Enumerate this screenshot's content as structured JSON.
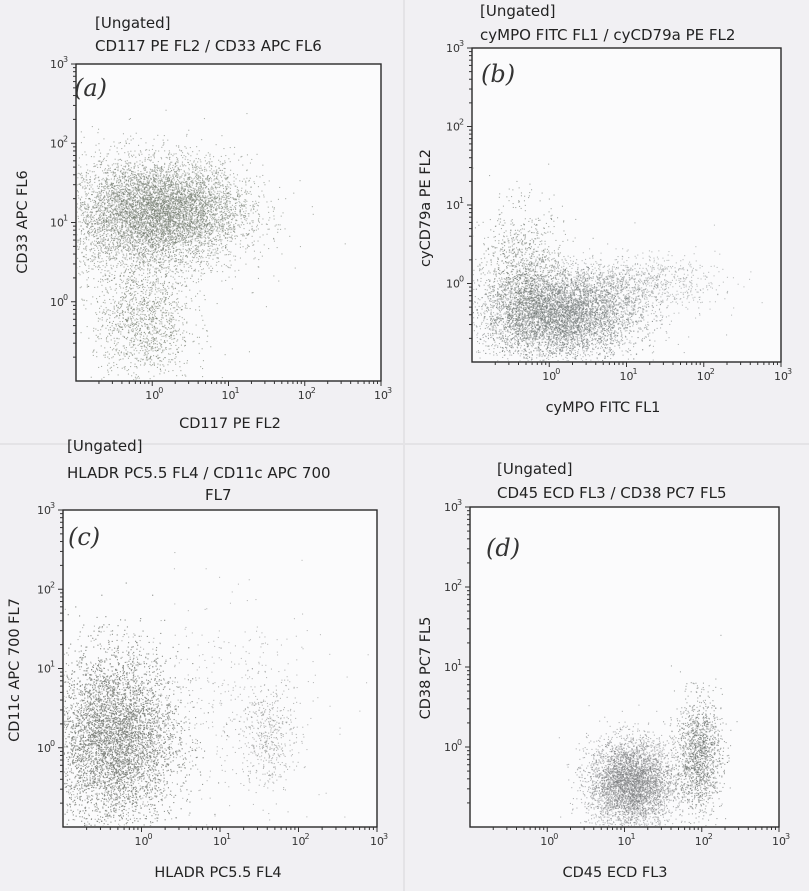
{
  "chart_data": [
    {
      "type": "scatter",
      "panel_label": "(a)",
      "gate": "[Ungated]",
      "title": "CD117 PE FL2 / CD33 APC FL6",
      "title_line2": "",
      "xlabel": "CD117 PE FL2",
      "ylabel": "CD33 APC FL6",
      "xscale": "log",
      "yscale": "log",
      "xlim": [
        0.1,
        1000
      ],
      "ylim": [
        0.1,
        1000
      ],
      "xticks": [
        {
          "base": "10",
          "exp": "0",
          "value": 1
        },
        {
          "base": "10",
          "exp": "1",
          "value": 10
        },
        {
          "base": "10",
          "exp": "2",
          "value": 100
        },
        {
          "base": "10",
          "exp": "3",
          "value": 1000
        }
      ],
      "yticks": [
        {
          "base": "10",
          "exp": "0",
          "value": 1
        },
        {
          "base": "10",
          "exp": "1",
          "value": 10
        },
        {
          "base": "10",
          "exp": "2",
          "value": 100
        },
        {
          "base": "10",
          "exp": "3",
          "value": 1000
        }
      ],
      "populations": [
        {
          "center": [
            0.9,
            12
          ],
          "spread": [
            1.2,
            0.75
          ],
          "count": 5200,
          "color": "#6d7569"
        },
        {
          "center": [
            1.9,
            16
          ],
          "spread": [
            1.0,
            0.55
          ],
          "count": 2200,
          "color": "#707a6c"
        },
        {
          "center": [
            0.75,
            0.55
          ],
          "spread": [
            0.65,
            0.8
          ],
          "count": 1300,
          "color": "#66705f"
        }
      ]
    },
    {
      "type": "scatter",
      "panel_label": "(b)",
      "gate": "[Ungated]",
      "title": "cyMPO FITC FL1 / cyCD79a PE FL2",
      "title_line2": "",
      "xlabel": "cyMPO FITC FL1",
      "ylabel": "cyCD79a PE FL2",
      "xscale": "log",
      "yscale": "log",
      "xlim": [
        0.1,
        1000
      ],
      "ylim": [
        0.1,
        1000
      ],
      "xticks": [
        {
          "base": "10",
          "exp": "0",
          "value": 1
        },
        {
          "base": "10",
          "exp": "1",
          "value": 10
        },
        {
          "base": "10",
          "exp": "2",
          "value": 100
        },
        {
          "base": "10",
          "exp": "3",
          "value": 1000
        }
      ],
      "yticks": [
        {
          "base": "10",
          "exp": "0",
          "value": 1
        },
        {
          "base": "10",
          "exp": "1",
          "value": 10
        },
        {
          "base": "10",
          "exp": "2",
          "value": 100
        },
        {
          "base": "10",
          "exp": "3",
          "value": 1000
        }
      ],
      "populations": [
        {
          "center": [
            1.4,
            0.4
          ],
          "spread": [
            1.0,
            0.55
          ],
          "count": 6200,
          "color": "#7a7f80"
        },
        {
          "center": [
            0.45,
            1.1
          ],
          "spread": [
            0.55,
            0.9
          ],
          "count": 1300,
          "color": "#666d64"
        },
        {
          "center": [
            12,
            1.0
          ],
          "spread": [
            1.1,
            0.35
          ],
          "count": 1000,
          "color": "#8a8f90"
        }
      ]
    },
    {
      "type": "scatter",
      "panel_label": "(c)",
      "gate": "[Ungated]",
      "title": "HLADR PC5.5 FL4 / CD11c APC 700",
      "title_line2": "FL7",
      "xlabel": "HLADR PC5.5 FL4",
      "ylabel": "CD11c APC 700 FL7",
      "xscale": "log",
      "yscale": "log",
      "xlim": [
        0.1,
        1000
      ],
      "ylim": [
        0.1,
        1000
      ],
      "xticks": [
        {
          "base": "10",
          "exp": "0",
          "value": 1
        },
        {
          "base": "10",
          "exp": "1",
          "value": 10
        },
        {
          "base": "10",
          "exp": "2",
          "value": 100
        },
        {
          "base": "10",
          "exp": "3",
          "value": 1000
        }
      ],
      "yticks": [
        {
          "base": "10",
          "exp": "0",
          "value": 1
        },
        {
          "base": "10",
          "exp": "1",
          "value": 10
        },
        {
          "base": "10",
          "exp": "2",
          "value": 100
        },
        {
          "base": "10",
          "exp": "3",
          "value": 1000
        }
      ],
      "populations": [
        {
          "center": [
            0.45,
            1.3
          ],
          "spread": [
            0.8,
            1.1
          ],
          "count": 9000,
          "color": "#7a7d78"
        },
        {
          "center": [
            40,
            1.5
          ],
          "spread": [
            0.35,
            0.7
          ],
          "count": 450,
          "color": "#808480"
        },
        {
          "center": [
            12,
            4
          ],
          "spread": [
            1.3,
            1.3
          ],
          "count": 350,
          "color": "#8a8d8a"
        }
      ]
    },
    {
      "type": "scatter",
      "panel_label": "(d)",
      "gate": "[Ungated]",
      "title": "CD45 ECD FL3 / CD38 PC7 FL5",
      "title_line2": "",
      "xlabel": "CD45 ECD FL3",
      "ylabel": "CD38 PC7 FL5",
      "xscale": "log",
      "yscale": "log",
      "xlim": [
        0.1,
        1000
      ],
      "ylim": [
        0.1,
        1000
      ],
      "xticks": [
        {
          "base": "10",
          "exp": "0",
          "value": 1
        },
        {
          "base": "10",
          "exp": "1",
          "value": 10
        },
        {
          "base": "10",
          "exp": "2",
          "value": 100
        },
        {
          "base": "10",
          "exp": "3",
          "value": 1000
        }
      ],
      "yticks": [
        {
          "base": "10",
          "exp": "0",
          "value": 1
        },
        {
          "base": "10",
          "exp": "1",
          "value": 10
        },
        {
          "base": "10",
          "exp": "2",
          "value": 100
        },
        {
          "base": "10",
          "exp": "3",
          "value": 1000
        }
      ],
      "populations": [
        {
          "center": [
            12,
            0.35
          ],
          "spread": [
            0.55,
            0.55
          ],
          "count": 4200,
          "color": "#7b7e80"
        },
        {
          "center": [
            90,
            0.8
          ],
          "spread": [
            0.3,
            0.7
          ],
          "count": 1400,
          "color": "#5f6560"
        }
      ]
    }
  ]
}
